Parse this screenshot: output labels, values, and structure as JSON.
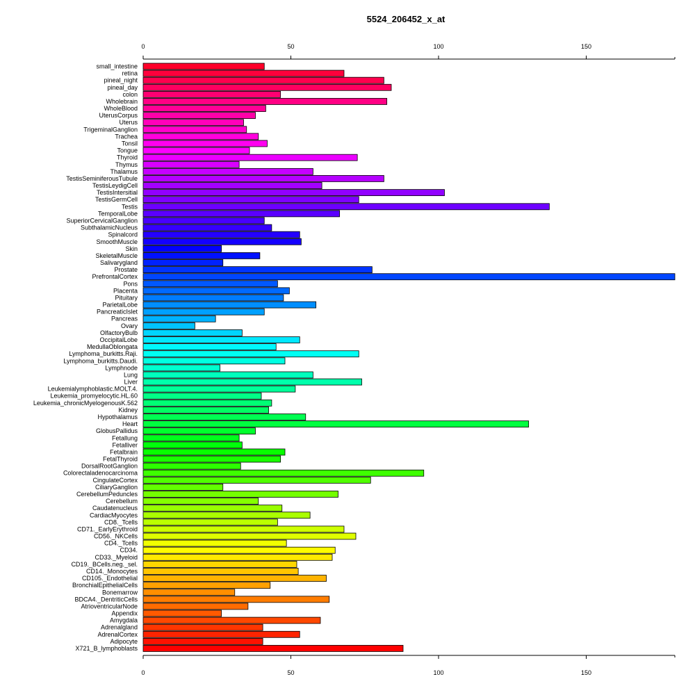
{
  "chart_data": {
    "type": "bar",
    "orientation": "horizontal",
    "title": "5524_206452_x_at",
    "xlabel": "",
    "ylabel": "",
    "xlim": [
      0,
      180
    ],
    "x_ticks": [
      0,
      50,
      100,
      150
    ],
    "axes": "top-and-bottom",
    "grid": false,
    "legend": "none",
    "colors": "rainbow gradient from red (top) through magenta, purple, blue, cyan, green, yellow, orange back to red (bottom)",
    "categories": [
      "small_intestine",
      "retina",
      "pineal_night",
      "pineal_day",
      "colon",
      "Wholebrain",
      "WholeBlood",
      "UterusCorpus",
      "Uterus",
      "TrigeminalGanglion",
      "Trachea",
      "Tonsil",
      "Tongue",
      "Thyroid",
      "Thymus",
      "Thalamus",
      "TestisSeminiferousTubule",
      "TestisLeydigCell",
      "TestisIntersitial",
      "TestisGermCell",
      "Testis",
      "TemporalLobe",
      "SuperiorCervicalGanglion",
      "SubthalamicNucleus",
      "Spinalcord",
      "SmoothMuscle",
      "Skin",
      "SkeletalMuscle",
      "Salivarygland",
      "Prostate",
      "PrefrontalCortex",
      "Pons",
      "Placenta",
      "Pituitary",
      "ParietalLobe",
      "PancreaticIslet",
      "Pancreas",
      "Ovary",
      "OlfactoryBulb",
      "OccipitalLobe",
      "MedullaOblongata",
      "Lymphoma_burkitts.Raji.",
      "Lymphoma_burkitts.Daudi.",
      "Lymphnode",
      "Lung",
      "Liver",
      "Leukemialymphoblastic.MOLT.4.",
      "Leukemia_promyelocytic.HL.60",
      "Leukemia_chronicMyelogenousK.562",
      "Kidney",
      "Hypothalamus",
      "Heart",
      "GlobusPallidus",
      "Fetallung",
      "Fetalliver",
      "Fetalbrain",
      "FetalThyroid",
      "DorsalRootGanglion",
      "Colorectaladenocarcinoma",
      "CingulateCortex",
      "CiliaryGanglion",
      "CerebellumPeduncles",
      "Cerebellum",
      "Caudatenucleus",
      "CardiacMyocytes",
      "CD8._Tcells",
      "CD71._EarlyErythroid",
      "CD56._NKCells",
      "CD4._Tcells",
      "CD34.",
      "CD33._Myeloid",
      "CD19._BCells.neg._sel.",
      "CD14._Monocytes",
      "CD105._Endothelial",
      "BronchialEpithelialCells",
      "Bonemarrow",
      "BDCA4._DentriticCells",
      "AtrioventricularNode",
      "Appendix",
      "Amygdala",
      "Adrenalgland",
      "AdrenalCortex",
      "Adipocyte",
      "X721_B_lymphoblasts"
    ],
    "values": [
      41,
      68,
      81.5,
      84,
      46.5,
      82.5,
      41.5,
      38,
      34,
      35,
      39,
      42,
      36,
      72.5,
      32.5,
      57.5,
      81.5,
      60.5,
      102,
      73,
      137.5,
      66.5,
      41,
      43.5,
      53,
      53.5,
      26.5,
      39.5,
      27,
      77.5,
      180,
      45.5,
      49.5,
      47.5,
      58.5,
      41,
      24.5,
      17.5,
      33.5,
      53,
      45,
      73,
      48,
      26,
      57.5,
      74,
      51.5,
      40,
      43.5,
      42.5,
      55,
      130.5,
      38,
      32.5,
      33.5,
      48,
      46.5,
      33,
      95,
      77,
      27,
      66,
      39,
      47,
      56.5,
      45.5,
      68,
      72,
      48.5,
      65,
      64,
      52,
      52.5,
      62,
      43,
      31,
      63,
      35.5,
      26.5,
      60,
      40.5,
      53,
      40.5,
      88
    ]
  }
}
